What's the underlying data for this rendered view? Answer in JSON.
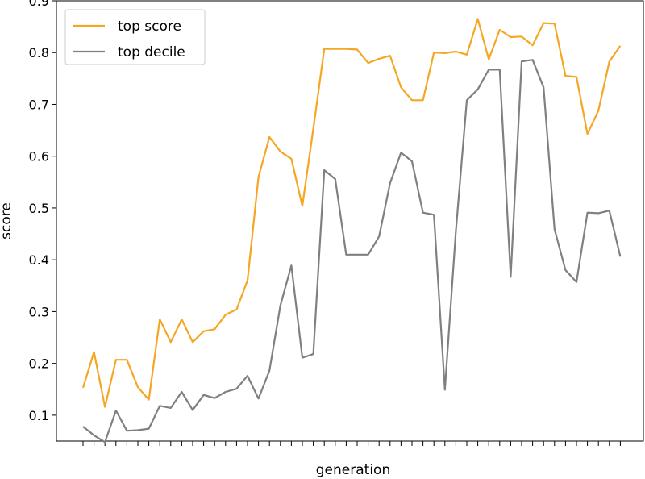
{
  "chart_data": {
    "type": "line",
    "title": "",
    "xlabel": "generation",
    "ylabel": "score",
    "ylim": [
      0.05,
      0.9
    ],
    "yticks": [
      0.1,
      0.2,
      0.3,
      0.4,
      0.5,
      0.6,
      0.7,
      0.8,
      0.9
    ],
    "ytick_labels": [
      "0.1",
      "0.2",
      "0.3",
      "0.4",
      "0.5",
      "0.6",
      "0.7",
      "0.8",
      "0.9"
    ],
    "x_tick_labels_shown": false,
    "grid": false,
    "legend_position": "upper-left",
    "x": [
      0,
      1,
      2,
      3,
      4,
      5,
      6,
      7,
      8,
      9,
      10,
      11,
      12,
      13,
      14,
      15,
      16,
      17,
      18,
      19,
      20,
      21,
      22,
      23,
      24,
      25,
      26,
      27,
      28,
      29,
      30,
      31,
      32,
      33,
      34,
      35,
      36,
      37,
      38,
      39,
      40,
      41,
      42,
      43,
      44,
      45,
      46,
      47,
      48,
      49
    ],
    "series": [
      {
        "name": "top score",
        "color": "#f5a623",
        "values": [
          0.153,
          0.222,
          0.116,
          0.207,
          0.207,
          0.154,
          0.13,
          0.285,
          0.241,
          0.285,
          0.241,
          0.262,
          0.266,
          0.294,
          0.304,
          0.36,
          0.56,
          0.637,
          0.609,
          0.595,
          0.504,
          0.653,
          0.807,
          0.807,
          0.807,
          0.806,
          0.78,
          0.788,
          0.794,
          0.733,
          0.708,
          0.708,
          0.8,
          0.799,
          0.802,
          0.796,
          0.865,
          0.787,
          0.844,
          0.83,
          0.831,
          0.814,
          0.857,
          0.856,
          0.755,
          0.753,
          0.643,
          0.688,
          0.783,
          0.813
        ]
      },
      {
        "name": "top decile",
        "color": "#808080",
        "values": [
          0.078,
          0.061,
          0.048,
          0.109,
          0.07,
          0.071,
          0.074,
          0.118,
          0.114,
          0.145,
          0.11,
          0.139,
          0.133,
          0.145,
          0.151,
          0.176,
          0.132,
          0.186,
          0.312,
          0.389,
          0.211,
          0.218,
          0.573,
          0.556,
          0.41,
          0.41,
          0.41,
          0.445,
          0.548,
          0.607,
          0.59,
          0.491,
          0.487,
          0.149,
          0.455,
          0.708,
          0.729,
          0.767,
          0.767,
          0.367,
          0.783,
          0.786,
          0.733,
          0.459,
          0.38,
          0.357,
          0.491,
          0.49,
          0.495,
          0.406
        ]
      }
    ]
  }
}
